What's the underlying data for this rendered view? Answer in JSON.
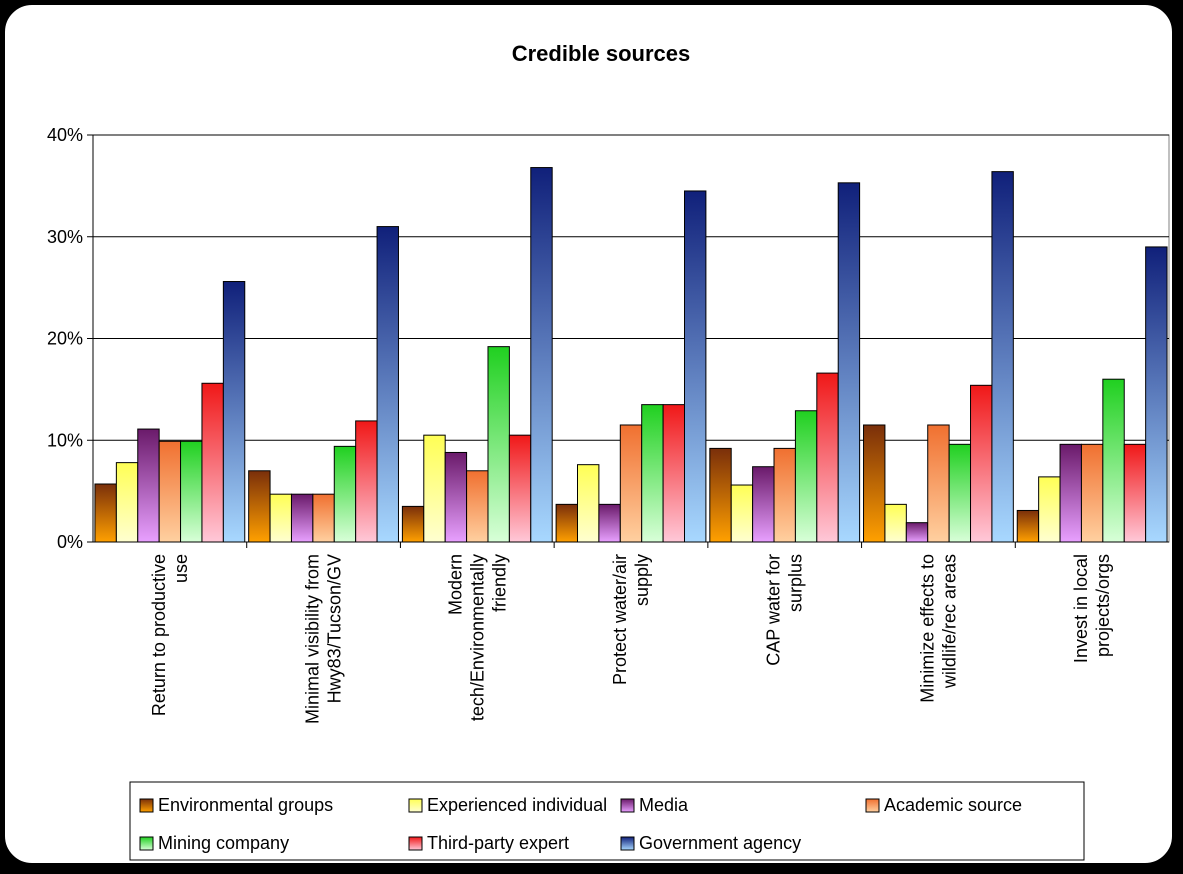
{
  "chart_data": {
    "type": "bar",
    "title": "Credible sources",
    "xlabel": "",
    "ylabel": "",
    "ylim": [
      0,
      0.4
    ],
    "yticks": [
      "0%",
      "10%",
      "20%",
      "30%",
      "40%"
    ],
    "grid": true,
    "legend_position": "bottom",
    "categories": [
      [
        "Return to productive",
        "use"
      ],
      [
        "Minimal visibility from",
        "Hwy83/Tucson/GV"
      ],
      [
        "Modern",
        "tech/Environmentally",
        "friendly"
      ],
      [
        "Protect water/air",
        "supply"
      ],
      [
        "CAP water for",
        "surplus"
      ],
      [
        "Minimize effects to",
        "wildlife/rec areas"
      ],
      [
        "Invest in local",
        "projects/orgs"
      ]
    ],
    "series": [
      {
        "name": "Environmental groups",
        "color_top": "#7a2f0a",
        "color_bottom": "#ffa000",
        "values": [
          0.057,
          0.07,
          0.035,
          0.037,
          0.092,
          0.115,
          0.031
        ]
      },
      {
        "name": "Experienced individual",
        "color_top": "#ffff55",
        "color_bottom": "#ffffd0",
        "values": [
          0.078,
          0.047,
          0.105,
          0.076,
          0.056,
          0.037,
          0.064
        ]
      },
      {
        "name": "Media",
        "color_top": "#6a1a6a",
        "color_bottom": "#e8a0ff",
        "values": [
          0.111,
          0.047,
          0.088,
          0.037,
          0.074,
          0.019,
          0.096
        ]
      },
      {
        "name": "Academic source",
        "color_top": "#f07030",
        "color_bottom": "#ffd0a0",
        "values": [
          0.099,
          0.047,
          0.07,
          0.115,
          0.092,
          0.115,
          0.096
        ]
      },
      {
        "name": "Mining company",
        "color_top": "#20d020",
        "color_bottom": "#d8ffd8",
        "values": [
          0.099,
          0.094,
          0.192,
          0.135,
          0.129,
          0.096,
          0.16
        ]
      },
      {
        "name": "Third-party expert",
        "color_top": "#f01818",
        "color_bottom": "#ffc8d8",
        "values": [
          0.156,
          0.119,
          0.105,
          0.135,
          0.166,
          0.154,
          0.096
        ]
      },
      {
        "name": "Government agency",
        "color_top": "#10207a",
        "color_bottom": "#a8d8ff",
        "values": [
          0.256,
          0.31,
          0.368,
          0.345,
          0.353,
          0.364,
          0.29
        ]
      }
    ]
  }
}
